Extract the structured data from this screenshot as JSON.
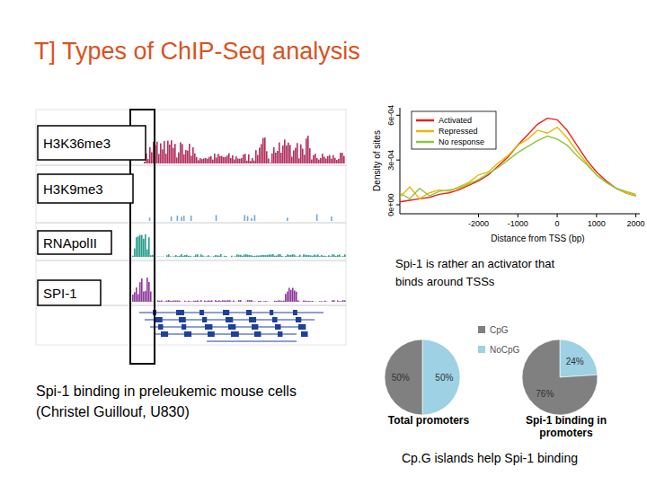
{
  "slide": {
    "title": "T] Types of ChIP-Seq analysis",
    "browser": {
      "tracks": [
        "H3K36me3",
        "H3K9me3",
        "RNApolII",
        "SPI-1"
      ],
      "caption": [
        "Spi-1 binding in preleukemic mouse cells",
        "(Christel Guillouf, U830)"
      ]
    },
    "density_note": [
      "Spi-1 is rather an activator that",
      "binds around TSSs"
    ],
    "pie_note": "Cp.G islands help Spi-1 binding"
  },
  "chart_data": [
    {
      "type": "line",
      "x_label": "Distance from TSS (bp)",
      "y_label": "Density of sites",
      "x": [
        -4000,
        -3750,
        -3500,
        -3250,
        -3000,
        -2750,
        -2500,
        -2250,
        -2000,
        -1750,
        -1500,
        -1250,
        -1000,
        -750,
        -500,
        -250,
        0,
        250,
        500,
        750,
        1000,
        1250,
        1500,
        1750,
        2000
      ],
      "series": [
        {
          "name": "Activated",
          "color": "#e8201c",
          "values": [
            2e-05,
            3e-05,
            4e-05,
            5e-05,
            7e-05,
            8e-05,
            0.0001,
            0.00013,
            0.00016,
            0.0002,
            0.00026,
            0.00032,
            0.0004,
            0.00047,
            0.00054,
            0.00058,
            0.00057,
            0.0005,
            0.0004,
            0.0003,
            0.00022,
            0.00016,
            0.00011,
            8e-05,
            6e-05
          ]
        },
        {
          "name": "Repressed",
          "color": "#e8b800",
          "values": [
            5e-05,
            0.00012,
            4e-05,
            8e-05,
            0.0001,
            9e-05,
            0.00012,
            0.00015,
            0.0002,
            0.00022,
            0.00028,
            0.00033,
            0.0004,
            0.00044,
            0.0005,
            0.00048,
            0.00052,
            0.00045,
            0.00036,
            0.00028,
            0.0002,
            0.00015,
            0.00011,
            8e-05,
            6e-05
          ]
        },
        {
          "name": "No response",
          "color": "#8cc63f",
          "values": [
            8e-05,
            4e-05,
            0.00011,
            6e-05,
            9e-05,
            0.0001,
            0.00011,
            0.00014,
            0.00017,
            0.00021,
            0.00025,
            0.0003,
            0.00035,
            0.00039,
            0.00043,
            0.00046,
            0.00044,
            0.0004,
            0.00033,
            0.00027,
            0.0002,
            0.00015,
            0.00011,
            9e-05,
            7e-05
          ]
        }
      ],
      "xlim": [
        -4000,
        2100
      ],
      "xticks": [
        -2000,
        -1000,
        0,
        1000,
        2000
      ],
      "ylim": [
        -6e-05,
        0.00065
      ],
      "yticks": [
        {
          "value": 0,
          "label": "0e+00"
        },
        {
          "value": 0.0003,
          "label": "3e-04"
        },
        {
          "value": 0.0006,
          "label": "6e-04"
        }
      ],
      "legend": "top-left"
    },
    {
      "type": "pie",
      "title": "Total promoters",
      "categories": [
        "CpG",
        "NoCpG"
      ],
      "values": [
        50,
        50
      ],
      "colors": [
        "#808080",
        "#9dd1e3"
      ],
      "data_labels": true,
      "value_labels": [
        "50%",
        "50%"
      ],
      "legend": "right"
    },
    {
      "type": "pie",
      "title": "Spi-1 binding in promoters",
      "categories": [
        "CpG",
        "NoCpG"
      ],
      "values": [
        76,
        24
      ],
      "colors": [
        "#808080",
        "#9dd1e3"
      ],
      "data_labels": true,
      "value_labels": [
        "76%",
        "24%"
      ]
    }
  ]
}
